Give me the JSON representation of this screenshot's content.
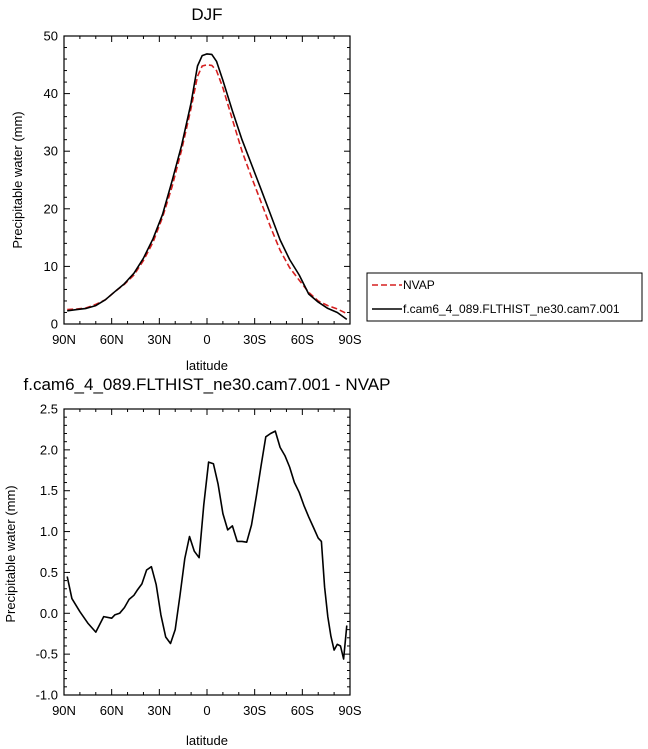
{
  "chart_data": [
    {
      "type": "line",
      "title": "DJF",
      "xlabel": "latitude",
      "ylabel": "Precipitable water (mm)",
      "xlim": [
        90,
        -90
      ],
      "ylim": [
        0,
        50
      ],
      "x_tick_labels": [
        "90N",
        "60N",
        "30N",
        "0",
        "30S",
        "60S",
        "90S"
      ],
      "y_tick_labels": [
        "0",
        "10",
        "20",
        "30",
        "40",
        "50"
      ],
      "legend_position": "right",
      "series": [
        {
          "name": "NVAP",
          "color": "#d62020",
          "dash": "dashed",
          "x": [
            88,
            82,
            76,
            70,
            64,
            58,
            52,
            46,
            40,
            34,
            28,
            22,
            16,
            10,
            6,
            3,
            0,
            -3,
            -6,
            -10,
            -16,
            -22,
            -28,
            -34,
            -40,
            -46,
            -52,
            -58,
            -64,
            -70,
            -76,
            -82,
            -88
          ],
          "y": [
            2.5,
            2.6,
            2.8,
            3.4,
            4.2,
            5.6,
            6.9,
            8.5,
            11.0,
            14.2,
            18.5,
            23.8,
            30.2,
            37.5,
            43.0,
            44.8,
            45.0,
            44.9,
            44.0,
            41.0,
            35.5,
            30.0,
            25.5,
            21.2,
            16.8,
            12.8,
            9.8,
            7.6,
            5.5,
            4.0,
            3.2,
            2.6,
            1.8
          ]
        },
        {
          "name": "f.cam6_4_089.FLTHIST_ne30.cam7.001",
          "color": "#000000",
          "dash": "solid",
          "x": [
            88,
            82,
            76,
            70,
            64,
            58,
            52,
            46,
            40,
            34,
            28,
            22,
            16,
            10,
            6,
            3,
            0,
            -3,
            -6,
            -10,
            -16,
            -22,
            -28,
            -34,
            -40,
            -46,
            -52,
            -58,
            -64,
            -70,
            -76,
            -82,
            -88
          ],
          "y": [
            2.3,
            2.5,
            2.7,
            3.2,
            4.2,
            5.6,
            7.0,
            8.8,
            11.4,
            14.8,
            19.0,
            24.8,
            31.0,
            38.4,
            44.8,
            46.6,
            46.9,
            46.8,
            45.6,
            42.3,
            37.0,
            32.0,
            27.7,
            23.4,
            19.0,
            14.6,
            11.2,
            8.5,
            5.2,
            3.8,
            2.7,
            2.0,
            0.8
          ]
        }
      ]
    },
    {
      "type": "line",
      "title": "f.cam6_4_089.FLTHIST_ne30.cam7.001 - NVAP",
      "xlabel": "latitude",
      "ylabel": "Precipitable water (mm)",
      "xlim": [
        90,
        -90
      ],
      "ylim": [
        -1.0,
        2.5
      ],
      "x_tick_labels": [
        "90N",
        "60N",
        "30N",
        "0",
        "30S",
        "60S",
        "90S"
      ],
      "y_tick_labels": [
        "-1.0",
        "-0.5",
        "0.0",
        "0.5",
        "1.0",
        "1.5",
        "2.0",
        "2.5"
      ],
      "series": [
        {
          "name": "",
          "color": "#000000",
          "dash": "solid",
          "x": [
            88,
            85,
            80,
            75,
            70,
            65,
            60,
            58,
            55,
            52,
            49,
            46,
            44,
            41,
            38,
            35,
            32,
            29,
            26,
            23,
            20,
            17,
            14,
            11,
            8,
            5,
            2,
            -1,
            -4,
            -7,
            -10,
            -13,
            -16,
            -19,
            -22,
            -25,
            -28,
            -31,
            -34,
            -37,
            -40,
            -43,
            -46,
            -49,
            -52,
            -55,
            -58,
            -61,
            -64,
            -67,
            -70,
            -72,
            -74,
            -76,
            -78,
            -80,
            -82,
            -84,
            -86,
            -88
          ],
          "y": [
            0.45,
            0.18,
            0.02,
            -0.12,
            -0.23,
            -0.04,
            -0.06,
            -0.02,
            0.0,
            0.07,
            0.17,
            0.22,
            0.28,
            0.36,
            0.53,
            0.57,
            0.35,
            -0.02,
            -0.29,
            -0.37,
            -0.2,
            0.22,
            0.67,
            0.94,
            0.76,
            0.68,
            1.33,
            1.85,
            1.83,
            1.58,
            1.22,
            1.02,
            1.07,
            0.88,
            0.88,
            0.87,
            1.08,
            1.43,
            1.8,
            2.16,
            2.2,
            2.23,
            2.03,
            1.93,
            1.79,
            1.6,
            1.48,
            1.32,
            1.18,
            1.05,
            0.92,
            0.88,
            0.32,
            -0.04,
            -0.28,
            -0.45,
            -0.38,
            -0.4,
            -0.56,
            -0.15
          ]
        }
      ]
    }
  ]
}
